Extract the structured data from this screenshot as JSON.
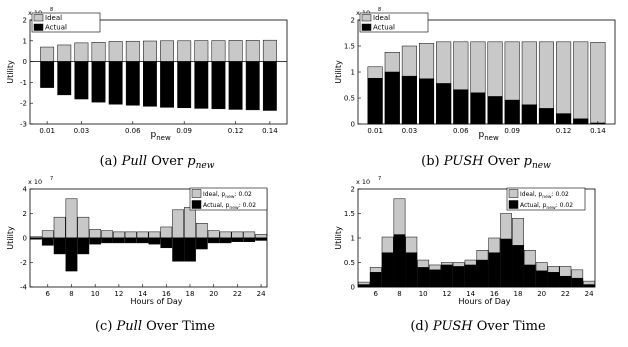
{
  "chart_data": [
    {
      "id": "a",
      "type": "bar",
      "caption": {
        "letter": "(a)",
        "word": "Pull",
        "rest": "Over",
        "var": "p",
        "sub": "new"
      },
      "exponent_label": "x 10",
      "exponent_power": "8",
      "ylabel": "Utility",
      "xlabel": "p",
      "xlabel_sub": "new",
      "ylim": [
        -3,
        2
      ],
      "y_ticks": [
        -3,
        -2,
        -1,
        0,
        1,
        2
      ],
      "x_tick_labels": [
        "0.01",
        "0.03",
        "0.06",
        "0.09",
        "0.12",
        "0.14"
      ],
      "x_tick_positions": [
        0.01,
        0.03,
        0.06,
        0.09,
        0.12,
        0.14
      ],
      "xlim": [
        0.0,
        0.15
      ],
      "x": [
        0.01,
        0.02,
        0.03,
        0.04,
        0.05,
        0.06,
        0.07,
        0.08,
        0.09,
        0.1,
        0.11,
        0.12,
        0.13,
        0.14
      ],
      "legend_position": "top-left",
      "series": [
        {
          "name": "Ideal",
          "color": "#c8c8c8",
          "values": [
            0.7,
            0.8,
            0.9,
            0.93,
            0.97,
            0.98,
            0.99,
            1.0,
            1.0,
            1.01,
            1.01,
            1.02,
            1.02,
            1.03
          ]
        },
        {
          "name": "Actual",
          "color": "#000000",
          "values": [
            -1.25,
            -1.6,
            -1.8,
            -1.95,
            -2.05,
            -2.1,
            -2.15,
            -2.2,
            -2.22,
            -2.25,
            -2.27,
            -2.3,
            -2.32,
            -2.35
          ]
        }
      ]
    },
    {
      "id": "b",
      "type": "bar",
      "caption": {
        "letter": "(b)",
        "word": "PUSH",
        "rest": "Over",
        "var": "p",
        "sub": "new"
      },
      "exponent_label": "x 10",
      "exponent_power": "8",
      "ylabel": "Utility",
      "xlabel": "p",
      "xlabel_sub": "new",
      "ylim": [
        0,
        2
      ],
      "y_ticks": [
        0,
        0.5,
        1,
        1.5,
        2
      ],
      "x_tick_labels": [
        "0.01",
        "0.03",
        "0.06",
        "0.09",
        "0.12",
        "0.14"
      ],
      "x_tick_positions": [
        0.01,
        0.03,
        0.06,
        0.09,
        0.12,
        0.14
      ],
      "xlim": [
        0.0,
        0.15
      ],
      "x": [
        0.01,
        0.02,
        0.03,
        0.04,
        0.05,
        0.06,
        0.07,
        0.08,
        0.09,
        0.1,
        0.11,
        0.12,
        0.13,
        0.14
      ],
      "legend_position": "top-left",
      "series": [
        {
          "name": "Ideal",
          "color": "#c8c8c8",
          "values": [
            1.1,
            1.38,
            1.5,
            1.55,
            1.58,
            1.58,
            1.58,
            1.58,
            1.58,
            1.58,
            1.58,
            1.58,
            1.58,
            1.57
          ]
        },
        {
          "name": "Actual",
          "color": "#000000",
          "values": [
            0.88,
            1.0,
            0.92,
            0.87,
            0.78,
            0.66,
            0.6,
            0.53,
            0.46,
            0.37,
            0.3,
            0.2,
            0.1,
            0.02
          ]
        }
      ]
    },
    {
      "id": "c",
      "type": "bar",
      "caption": {
        "letter": "(c)",
        "word": "Pull",
        "rest": "Over Time"
      },
      "exponent_label": "x 10",
      "exponent_power": "7",
      "ylabel": "Utility",
      "xlabel": "Hours of Day",
      "ylim": [
        -4,
        4
      ],
      "y_ticks": [
        -4,
        -2,
        0,
        2,
        4
      ],
      "x_tick_labels": [
        "6",
        "8",
        "10",
        "12",
        "14",
        "16",
        "18",
        "20",
        "22",
        "24"
      ],
      "x_tick_positions": [
        6,
        8,
        10,
        12,
        14,
        16,
        18,
        20,
        22,
        24
      ],
      "xlim": [
        4.5,
        24.5
      ],
      "x": [
        5,
        6,
        7,
        8,
        9,
        10,
        11,
        12,
        13,
        14,
        15,
        16,
        17,
        18,
        19,
        20,
        21,
        22,
        23,
        24
      ],
      "legend_position": "top-right",
      "legend_p": "p",
      "legend_sub": "new",
      "legend_val": ": 0.02",
      "series": [
        {
          "name": "Ideal,",
          "color": "#c8c8c8",
          "values": [
            0.1,
            0.6,
            1.7,
            3.2,
            1.7,
            0.7,
            0.6,
            0.5,
            0.5,
            0.5,
            0.5,
            0.9,
            2.3,
            2.5,
            1.2,
            0.6,
            0.5,
            0.5,
            0.5,
            0.3
          ]
        },
        {
          "name": "Actual,",
          "color": "#000000",
          "values": [
            -0.1,
            -0.6,
            -1.3,
            -2.7,
            -1.3,
            -0.5,
            -0.4,
            -0.4,
            -0.4,
            -0.4,
            -0.5,
            -0.8,
            -1.9,
            -1.9,
            -0.9,
            -0.4,
            -0.4,
            -0.3,
            -0.3,
            -0.2
          ]
        }
      ]
    },
    {
      "id": "d",
      "type": "bar",
      "caption": {
        "letter": "(d)",
        "word": "PUSH",
        "rest": "Over Time"
      },
      "exponent_label": "x 10",
      "exponent_power": "7",
      "ylabel": "Utility",
      "xlabel": "Hours of Day",
      "ylim": [
        0,
        2
      ],
      "y_ticks": [
        0,
        0.5,
        1,
        1.5,
        2
      ],
      "x_tick_labels": [
        "6",
        "8",
        "10",
        "12",
        "14",
        "16",
        "18",
        "20",
        "22",
        "24"
      ],
      "x_tick_positions": [
        6,
        8,
        10,
        12,
        14,
        16,
        18,
        20,
        22,
        24
      ],
      "xlim": [
        4.5,
        24.5
      ],
      "x": [
        5,
        6,
        7,
        8,
        9,
        10,
        11,
        12,
        13,
        14,
        15,
        16,
        17,
        18,
        19,
        20,
        21,
        22,
        23,
        24
      ],
      "legend_position": "top-right",
      "legend_p": "p",
      "legend_sub": "new",
      "legend_val": ": 0.02",
      "series": [
        {
          "name": "Ideal,",
          "color": "#c8c8c8",
          "values": [
            0.1,
            0.4,
            1.02,
            1.8,
            1.02,
            0.55,
            0.45,
            0.5,
            0.5,
            0.55,
            0.75,
            1.0,
            1.5,
            1.4,
            0.75,
            0.5,
            0.42,
            0.42,
            0.35,
            0.12
          ]
        },
        {
          "name": "Actual,",
          "color": "#000000",
          "values": [
            0.05,
            0.3,
            0.7,
            1.07,
            0.7,
            0.4,
            0.35,
            0.45,
            0.42,
            0.45,
            0.55,
            0.7,
            0.98,
            0.85,
            0.45,
            0.33,
            0.3,
            0.22,
            0.18,
            0.05
          ]
        }
      ]
    }
  ]
}
